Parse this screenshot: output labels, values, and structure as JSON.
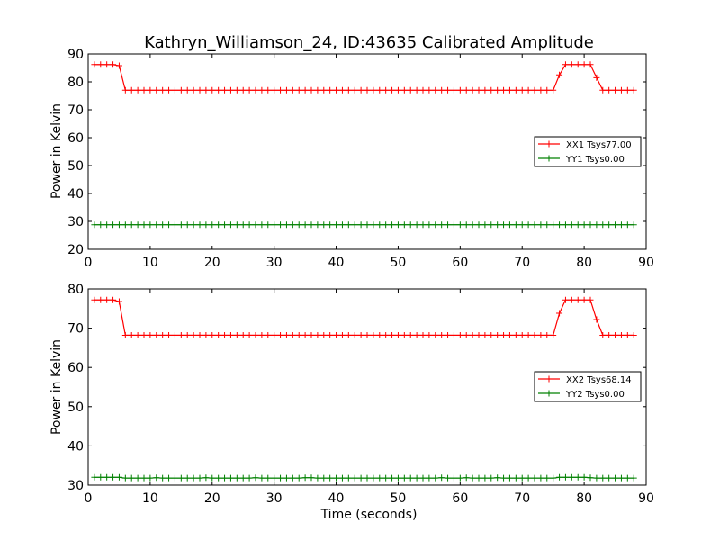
{
  "chart_data": [
    {
      "type": "line",
      "title": "Kathryn_Williamson_24, ID:43635 Calibrated Amplitude",
      "xlabel": "",
      "ylabel": "Power in Kelvin",
      "xlim": [
        0,
        90
      ],
      "ylim": [
        20,
        90
      ],
      "xticks": [
        0,
        10,
        20,
        30,
        40,
        50,
        60,
        70,
        80,
        90
      ],
      "yticks": [
        20,
        30,
        40,
        50,
        60,
        70,
        80,
        90
      ],
      "legend_position": "center-right",
      "series": [
        {
          "name": "XX1 Tsys77.00",
          "color": "#ff0000",
          "x": [
            1,
            2,
            3,
            4,
            5,
            6,
            7,
            8,
            9,
            10,
            11,
            12,
            13,
            14,
            15,
            16,
            17,
            18,
            19,
            20,
            21,
            22,
            23,
            24,
            25,
            26,
            27,
            28,
            29,
            30,
            31,
            32,
            33,
            34,
            35,
            36,
            37,
            38,
            39,
            40,
            41,
            42,
            43,
            44,
            45,
            46,
            47,
            48,
            49,
            50,
            51,
            52,
            53,
            54,
            55,
            56,
            57,
            58,
            59,
            60,
            61,
            62,
            63,
            64,
            65,
            66,
            67,
            68,
            69,
            70,
            71,
            72,
            73,
            74,
            75,
            76,
            77,
            78,
            79,
            80,
            81,
            82,
            83,
            84,
            85,
            86,
            87,
            88
          ],
          "y": [
            86.2,
            86.2,
            86.2,
            86.2,
            85.8,
            77.0,
            77.0,
            77.0,
            77.0,
            77.0,
            77.0,
            77.0,
            77.0,
            77.0,
            77.0,
            77.0,
            77.0,
            77.0,
            77.0,
            77.0,
            77.0,
            77.0,
            77.0,
            77.0,
            77.0,
            77.0,
            77.0,
            77.0,
            77.0,
            77.0,
            77.0,
            77.0,
            77.0,
            77.0,
            77.0,
            77.0,
            77.0,
            77.0,
            77.0,
            77.0,
            77.0,
            77.0,
            77.0,
            77.0,
            77.0,
            77.0,
            77.0,
            77.0,
            77.0,
            77.0,
            77.0,
            77.0,
            77.0,
            77.0,
            77.0,
            77.0,
            77.0,
            77.0,
            77.0,
            77.0,
            77.0,
            77.0,
            77.0,
            77.0,
            77.0,
            77.0,
            77.0,
            77.0,
            77.0,
            77.0,
            77.0,
            77.0,
            77.0,
            77.0,
            77.0,
            82.5,
            86.2,
            86.2,
            86.2,
            86.2,
            86.2,
            81.5,
            77.0,
            77.0,
            77.0,
            77.0,
            77.0,
            77.0
          ]
        },
        {
          "name": "YY1 Tsys0.00",
          "color": "#008000",
          "x": [
            1,
            2,
            3,
            4,
            5,
            6,
            7,
            8,
            9,
            10,
            11,
            12,
            13,
            14,
            15,
            16,
            17,
            18,
            19,
            20,
            21,
            22,
            23,
            24,
            25,
            26,
            27,
            28,
            29,
            30,
            31,
            32,
            33,
            34,
            35,
            36,
            37,
            38,
            39,
            40,
            41,
            42,
            43,
            44,
            45,
            46,
            47,
            48,
            49,
            50,
            51,
            52,
            53,
            54,
            55,
            56,
            57,
            58,
            59,
            60,
            61,
            62,
            63,
            64,
            65,
            66,
            67,
            68,
            69,
            70,
            71,
            72,
            73,
            74,
            75,
            76,
            77,
            78,
            79,
            80,
            81,
            82,
            83,
            84,
            85,
            86,
            87,
            88
          ],
          "y": [
            28.8,
            28.8,
            28.8,
            28.8,
            28.8,
            28.8,
            28.8,
            28.8,
            28.8,
            28.8,
            28.8,
            28.8,
            28.8,
            28.8,
            28.8,
            28.8,
            28.8,
            28.8,
            28.8,
            28.8,
            28.8,
            28.8,
            28.8,
            28.8,
            28.8,
            28.8,
            28.8,
            28.8,
            28.8,
            28.8,
            28.8,
            28.8,
            28.8,
            28.8,
            28.8,
            28.8,
            28.8,
            28.8,
            28.8,
            28.8,
            28.8,
            28.8,
            28.8,
            28.8,
            28.8,
            28.8,
            28.8,
            28.8,
            28.8,
            28.8,
            28.8,
            28.8,
            28.8,
            28.8,
            28.8,
            28.8,
            28.8,
            28.8,
            28.8,
            28.8,
            28.8,
            28.8,
            28.8,
            28.8,
            28.8,
            28.8,
            28.8,
            28.8,
            28.8,
            28.8,
            28.8,
            28.8,
            28.8,
            28.8,
            28.8,
            28.8,
            28.8,
            28.8,
            28.8,
            28.8,
            28.8,
            28.8,
            28.8,
            28.8,
            28.8,
            28.8,
            28.8,
            28.8
          ]
        }
      ]
    },
    {
      "type": "line",
      "title": "",
      "xlabel": "Time (seconds)",
      "ylabel": "Power in Kelvin",
      "xlim": [
        0,
        90
      ],
      "ylim": [
        30,
        80
      ],
      "xticks": [
        0,
        10,
        20,
        30,
        40,
        50,
        60,
        70,
        80,
        90
      ],
      "yticks": [
        30,
        40,
        50,
        60,
        70,
        80
      ],
      "legend_position": "center-right",
      "series": [
        {
          "name": "XX2 Tsys68.14",
          "color": "#ff0000",
          "x": [
            1,
            2,
            3,
            4,
            5,
            6,
            7,
            8,
            9,
            10,
            11,
            12,
            13,
            14,
            15,
            16,
            17,
            18,
            19,
            20,
            21,
            22,
            23,
            24,
            25,
            26,
            27,
            28,
            29,
            30,
            31,
            32,
            33,
            34,
            35,
            36,
            37,
            38,
            39,
            40,
            41,
            42,
            43,
            44,
            45,
            46,
            47,
            48,
            49,
            50,
            51,
            52,
            53,
            54,
            55,
            56,
            57,
            58,
            59,
            60,
            61,
            62,
            63,
            64,
            65,
            66,
            67,
            68,
            69,
            70,
            71,
            72,
            73,
            74,
            75,
            76,
            77,
            78,
            79,
            80,
            81,
            82,
            83,
            84,
            85,
            86,
            87,
            88
          ],
          "y": [
            77.2,
            77.2,
            77.2,
            77.2,
            76.8,
            68.2,
            68.2,
            68.2,
            68.2,
            68.2,
            68.2,
            68.2,
            68.2,
            68.2,
            68.2,
            68.2,
            68.2,
            68.2,
            68.2,
            68.2,
            68.2,
            68.2,
            68.2,
            68.2,
            68.2,
            68.2,
            68.2,
            68.2,
            68.2,
            68.2,
            68.2,
            68.2,
            68.2,
            68.2,
            68.2,
            68.2,
            68.2,
            68.2,
            68.2,
            68.2,
            68.2,
            68.2,
            68.2,
            68.2,
            68.2,
            68.2,
            68.2,
            68.2,
            68.2,
            68.2,
            68.2,
            68.2,
            68.2,
            68.2,
            68.2,
            68.2,
            68.2,
            68.2,
            68.2,
            68.2,
            68.2,
            68.2,
            68.2,
            68.2,
            68.2,
            68.2,
            68.2,
            68.2,
            68.2,
            68.2,
            68.2,
            68.2,
            68.2,
            68.2,
            68.2,
            73.8,
            77.2,
            77.2,
            77.2,
            77.2,
            77.2,
            72.2,
            68.2,
            68.2,
            68.2,
            68.2,
            68.2,
            68.2
          ]
        },
        {
          "name": "YY2 Tsys0.00",
          "color": "#008000",
          "x": [
            1,
            2,
            3,
            4,
            5,
            6,
            7,
            8,
            9,
            10,
            11,
            12,
            13,
            14,
            15,
            16,
            17,
            18,
            19,
            20,
            21,
            22,
            23,
            24,
            25,
            26,
            27,
            28,
            29,
            30,
            31,
            32,
            33,
            34,
            35,
            36,
            37,
            38,
            39,
            40,
            41,
            42,
            43,
            44,
            45,
            46,
            47,
            48,
            49,
            50,
            51,
            52,
            53,
            54,
            55,
            56,
            57,
            58,
            59,
            60,
            61,
            62,
            63,
            64,
            65,
            66,
            67,
            68,
            69,
            70,
            71,
            72,
            73,
            74,
            75,
            76,
            77,
            78,
            79,
            80,
            81,
            82,
            83,
            84,
            85,
            86,
            87,
            88
          ],
          "y": [
            32.0,
            32.0,
            32.0,
            32.0,
            32.0,
            31.8,
            31.8,
            31.8,
            31.8,
            31.8,
            31.9,
            31.8,
            31.8,
            31.8,
            31.8,
            31.8,
            31.8,
            31.8,
            31.9,
            31.8,
            31.8,
            31.8,
            31.8,
            31.8,
            31.8,
            31.8,
            31.9,
            31.8,
            31.8,
            31.8,
            31.8,
            31.8,
            31.8,
            31.8,
            31.9,
            31.9,
            31.8,
            31.8,
            31.8,
            31.8,
            31.8,
            31.8,
            31.8,
            31.8,
            31.8,
            31.8,
            31.8,
            31.8,
            31.8,
            31.8,
            31.8,
            31.8,
            31.8,
            31.8,
            31.8,
            31.8,
            31.9,
            31.8,
            31.8,
            31.8,
            31.9,
            31.8,
            31.8,
            31.8,
            31.8,
            31.9,
            31.8,
            31.8,
            31.8,
            31.8,
            31.8,
            31.8,
            31.8,
            31.8,
            31.8,
            32.0,
            32.0,
            32.0,
            32.0,
            32.0,
            31.9,
            31.8,
            31.8,
            31.8,
            31.8,
            31.8,
            31.8,
            31.8
          ]
        }
      ]
    }
  ]
}
